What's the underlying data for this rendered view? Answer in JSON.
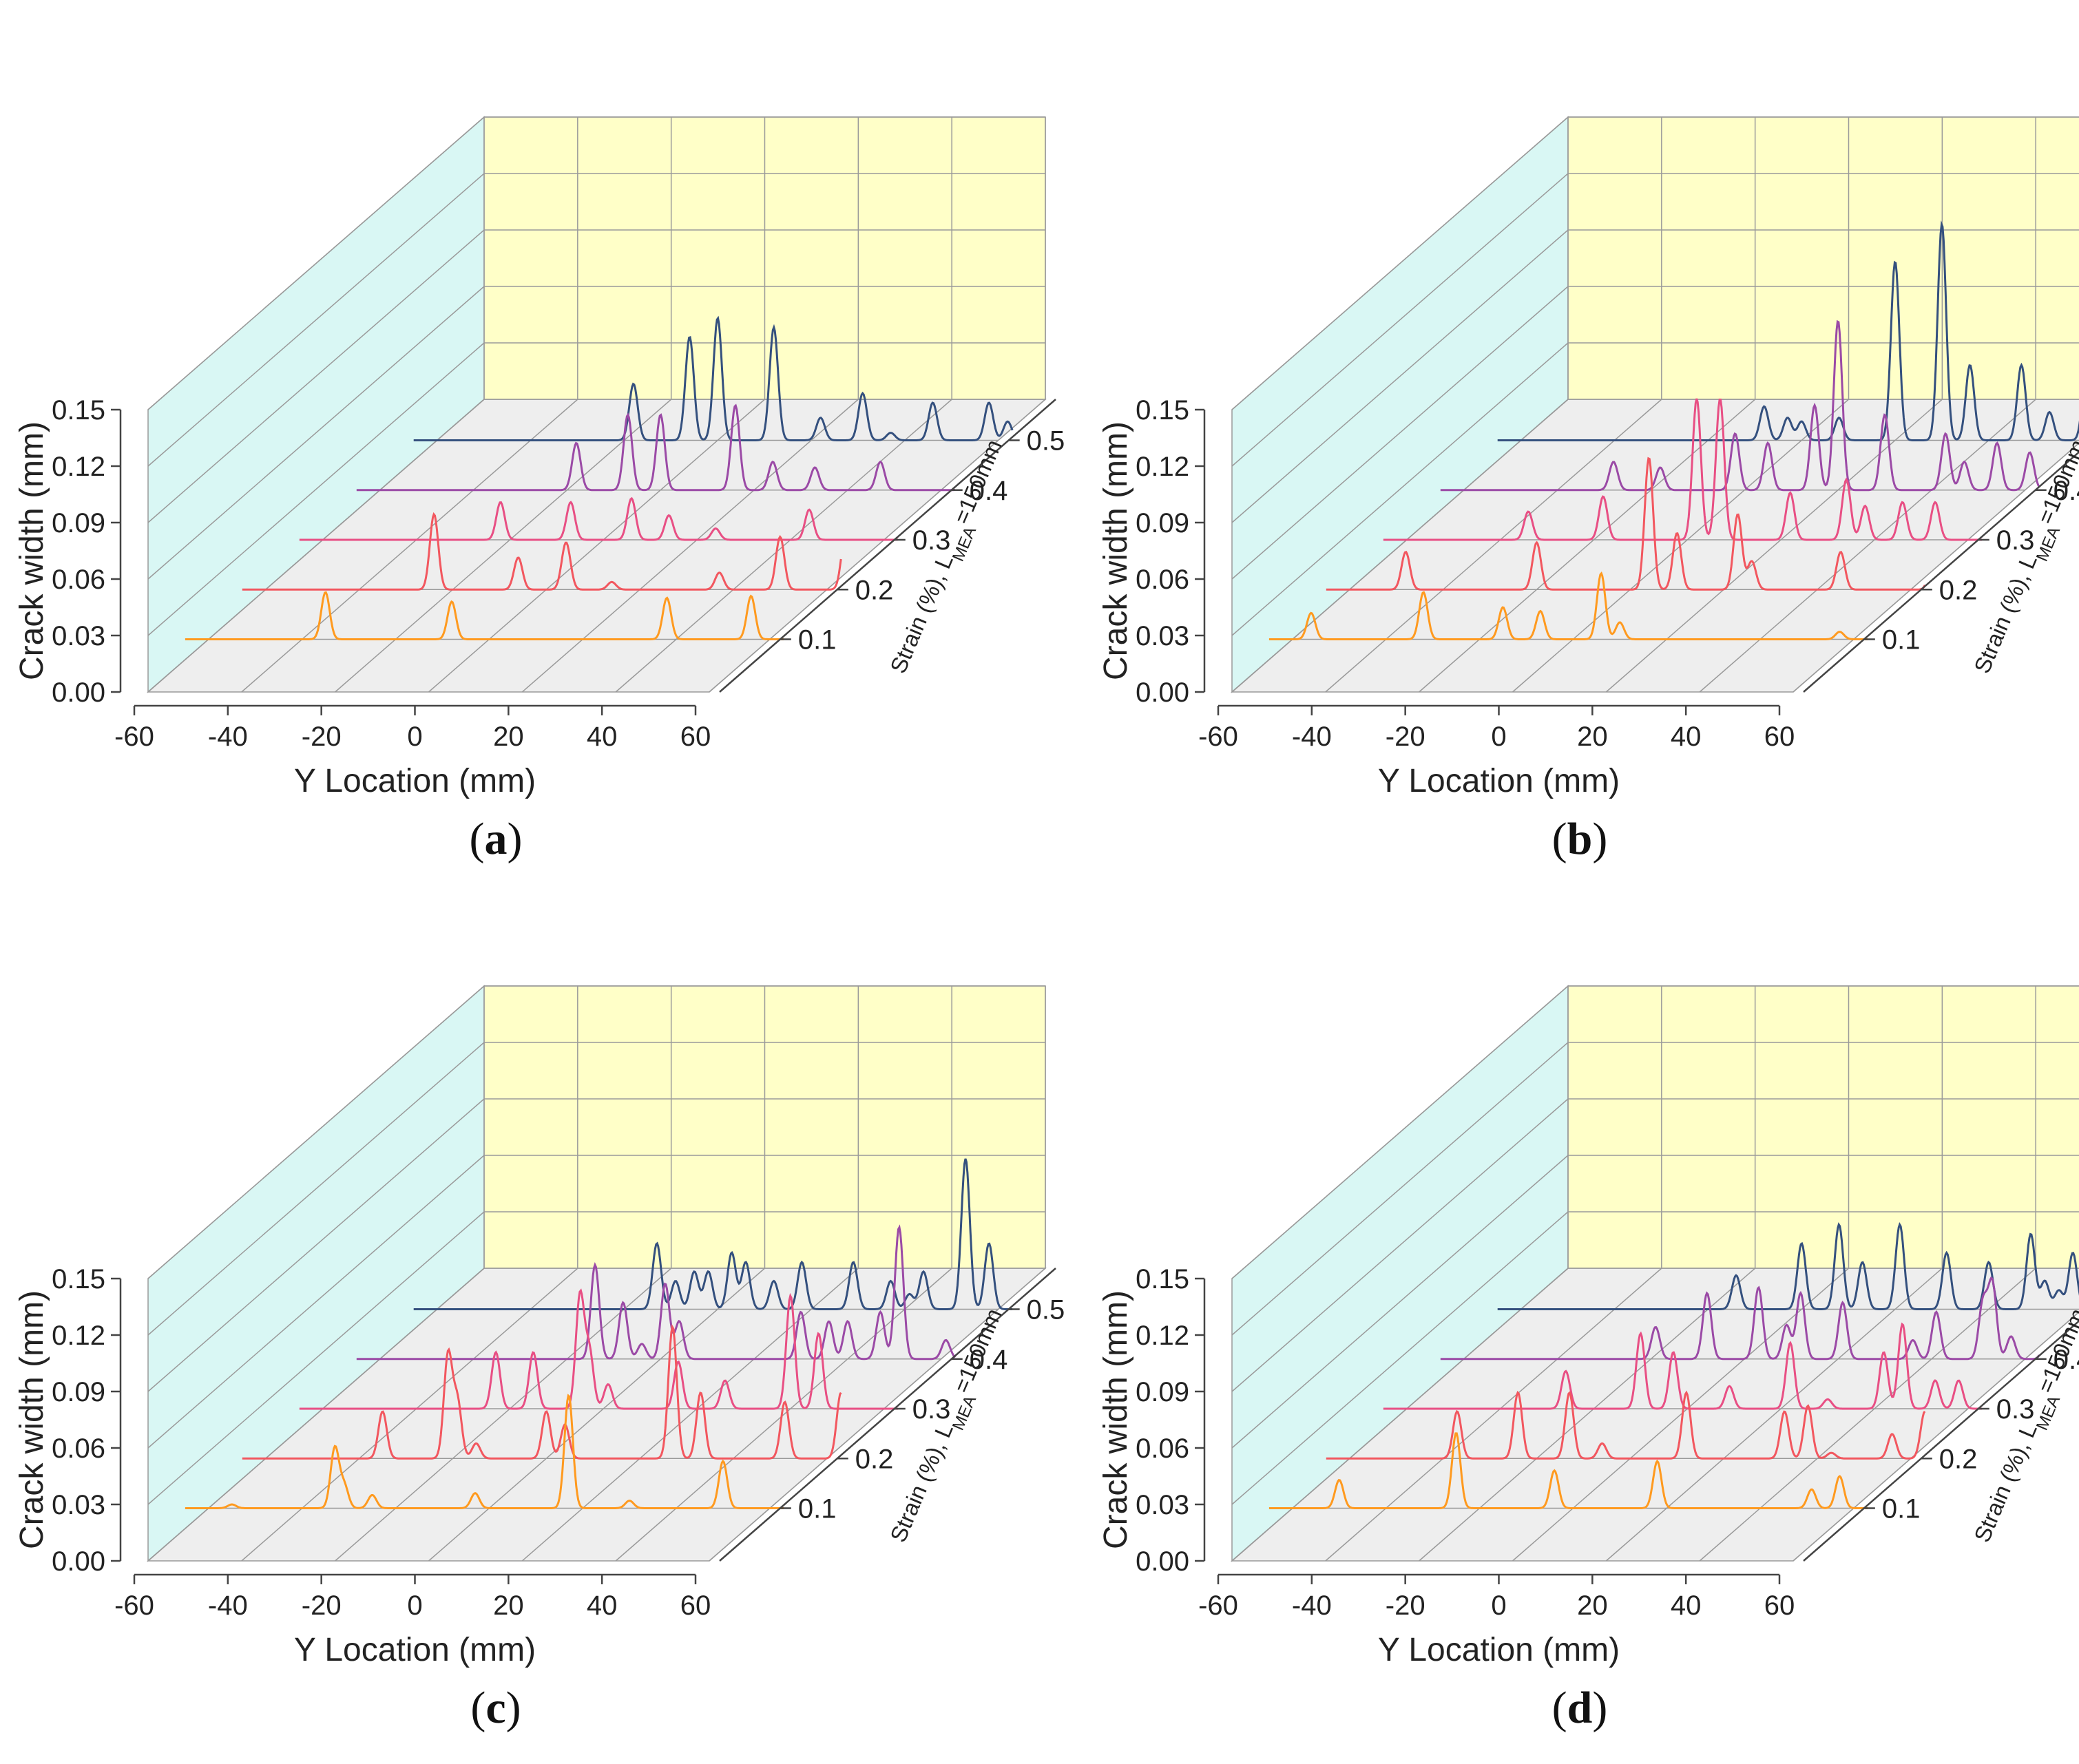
{
  "colors": {
    "back_wall": "#ffffc8",
    "side_wall": "#d9f7f4",
    "floor": "#eeeeee",
    "grid": "#9a9a9a",
    "axis": "#444444",
    "series": [
      "#ff9a1f",
      "#f2575f",
      "#e84f84",
      "#9b4aa6",
      "#34507e"
    ]
  },
  "chart_data": [
    {
      "type": "line",
      "panel": "(a)",
      "caption_letter": "a",
      "xlabel": "Y Location (mm)",
      "ylabel": "Crack width (mm)",
      "zlabel": "Strain (%), L",
      "zlabel_sub": "MEA",
      "zlabel_suffix": "=150mm",
      "xlim": [
        -60,
        60
      ],
      "ylim": [
        0,
        0.15
      ],
      "x_ticks": [
        "-60",
        "-40",
        "-20",
        "0",
        "20",
        "40",
        "60"
      ],
      "y_ticks": [
        "0.00",
        "0.03",
        "0.06",
        "0.09",
        "0.12",
        "0.15"
      ],
      "z_ticks": [
        "0.1",
        "0.2",
        "0.3",
        "0.4",
        "0.5"
      ],
      "series": [
        {
          "strain": 0.1,
          "peaks": [
            [
              -35,
              0.025
            ],
            [
              -8,
              0.02
            ],
            [
              38,
              0.022
            ],
            [
              56,
              0.023
            ]
          ]
        },
        {
          "strain": 0.2,
          "peaks": [
            [
              -24,
              0.04
            ],
            [
              -6,
              0.017
            ],
            [
              4,
              0.014
            ],
            [
              4.5,
              0.012
            ],
            [
              14,
              0.004
            ],
            [
              37,
              0.009
            ],
            [
              50,
              0.028
            ],
            [
              64,
              0.03
            ]
          ]
        },
        {
          "strain": 0.3,
          "peaks": [
            [
              -22,
              0.02
            ],
            [
              -7,
              0.02
            ],
            [
              6,
              0.022
            ],
            [
              14,
              0.013
            ],
            [
              24,
              0.006
            ],
            [
              44,
              0.016
            ],
            [
              66,
              0.026
            ]
          ]
        },
        {
          "strain": 0.4,
          "peaks": [
            [
              -18,
              0.025
            ],
            [
              -7,
              0.04
            ],
            [
              0,
              0.04
            ],
            [
              16,
              0.045
            ],
            [
              24,
              0.015
            ],
            [
              33,
              0.012
            ],
            [
              47,
              0.015
            ],
            [
              66,
              0.023
            ],
            [
              70,
              0.008
            ],
            [
              81,
              0.027
            ],
            [
              89,
              0.04
            ]
          ]
        },
        {
          "strain": 0.5,
          "peaks": [
            [
              -18,
              0.03
            ],
            [
              -6,
              0.055
            ],
            [
              0,
              0.065
            ],
            [
              12,
              0.06
            ],
            [
              22,
              0.012
            ],
            [
              31,
              0.025
            ],
            [
              37,
              0.004
            ],
            [
              46,
              0.02
            ],
            [
              58,
              0.02
            ],
            [
              62,
              0.01
            ],
            [
              77,
              0.025
            ],
            [
              89,
              0.04
            ]
          ]
        }
      ]
    },
    {
      "type": "line",
      "panel": "(b)",
      "caption_letter": "b",
      "xlabel": "Y Location (mm)",
      "ylabel": "Crack width (mm)",
      "zlabel": "Strain (%), L",
      "zlabel_sub": "MEA",
      "zlabel_suffix": "=150mm",
      "xlim": [
        -60,
        60
      ],
      "ylim": [
        0,
        0.15
      ],
      "x_ticks": [
        "-60",
        "-40",
        "-20",
        "0",
        "20",
        "40",
        "60"
      ],
      "y_ticks": [
        "0.00",
        "0.03",
        "0.06",
        "0.09",
        "0.12",
        "0.15"
      ],
      "z_ticks": [
        "0.1",
        "0.2",
        "0.3",
        "0.4",
        "0.5"
      ],
      "series": [
        {
          "strain": 0.1,
          "peaks": [
            [
              -56,
              0.014
            ],
            [
              -32,
              0.025
            ],
            [
              -15,
              0.017
            ],
            [
              -7,
              0.015
            ],
            [
              6,
              0.035
            ],
            [
              10,
              0.009
            ],
            [
              57,
              0.004
            ]
          ]
        },
        {
          "strain": 0.2,
          "peaks": [
            [
              -48,
              0.02
            ],
            [
              -20,
              0.025
            ],
            [
              4,
              0.07
            ],
            [
              10,
              0.03
            ],
            [
              23,
              0.04
            ],
            [
              26,
              0.015
            ],
            [
              45,
              0.02
            ],
            [
              65,
              0.028
            ]
          ]
        },
        {
          "strain": 0.3,
          "peaks": [
            [
              -34,
              0.015
            ],
            [
              -18,
              0.023
            ],
            [
              2,
              0.075
            ],
            [
              7,
              0.075
            ],
            [
              22,
              0.025
            ],
            [
              34,
              0.032
            ],
            [
              38,
              0.018
            ],
            [
              46,
              0.02
            ],
            [
              53,
              0.02
            ],
            [
              71,
              0.027
            ],
            [
              80,
              0.005
            ]
          ]
        },
        {
          "strain": 0.4,
          "peaks": [
            [
              -28,
              0.015
            ],
            [
              -18,
              0.012
            ],
            [
              -2,
              0.03
            ],
            [
              5,
              0.025
            ],
            [
              15,
              0.045
            ],
            [
              20,
              0.09
            ],
            [
              30,
              0.04
            ],
            [
              43,
              0.03
            ],
            [
              47,
              0.015
            ],
            [
              54,
              0.025
            ],
            [
              61,
              0.02
            ],
            [
              76,
              0.027
            ],
            [
              80,
              0.008
            ],
            [
              88,
              0.006
            ]
          ]
        },
        {
          "strain": 0.5,
          "peaks": [
            [
              -8,
              0.018
            ],
            [
              -3,
              0.012
            ],
            [
              0,
              0.01
            ],
            [
              8,
              0.012
            ],
            [
              20,
              0.095
            ],
            [
              30,
              0.115
            ],
            [
              36,
              0.04
            ],
            [
              47,
              0.04
            ],
            [
              53,
              0.015
            ],
            [
              61,
              0.04
            ],
            [
              69,
              0.025
            ],
            [
              80,
              0.025
            ],
            [
              96,
              0.035
            ],
            [
              100,
              0.01
            ],
            [
              106,
              0.008
            ]
          ]
        }
      ]
    },
    {
      "type": "line",
      "panel": "(c)",
      "caption_letter": "c",
      "xlabel": "Y Location (mm)",
      "ylabel": "Crack width (mm)",
      "zlabel": "Strain (%), L",
      "zlabel_sub": "MEA",
      "zlabel_suffix": "=150mm",
      "xlim": [
        -60,
        60
      ],
      "ylim": [
        0,
        0.15
      ],
      "x_ticks": [
        "-60",
        "-40",
        "-20",
        "0",
        "20",
        "40",
        "60"
      ],
      "y_ticks": [
        "0.00",
        "0.03",
        "0.06",
        "0.09",
        "0.12",
        "0.15"
      ],
      "z_ticks": [
        "0.1",
        "0.2",
        "0.3",
        "0.4",
        "0.5"
      ],
      "series": [
        {
          "strain": 0.1,
          "peaks": [
            [
              -55,
              0.002
            ],
            [
              -33,
              0.032
            ],
            [
              -31,
              0.012
            ],
            [
              -25,
              0.007
            ],
            [
              -3,
              0.008
            ],
            [
              17,
              0.06
            ],
            [
              30,
              0.004
            ],
            [
              50,
              0.025
            ]
          ]
        },
        {
          "strain": 0.2,
          "peaks": [
            [
              -35,
              0.025
            ],
            [
              -21,
              0.055
            ],
            [
              -19,
              0.03
            ],
            [
              -15,
              0.008
            ],
            [
              0,
              0.025
            ],
            [
              4,
              0.018
            ],
            [
              27,
              0.07
            ],
            [
              33,
              0.035
            ],
            [
              51,
              0.03
            ],
            [
              63,
              0.035
            ]
          ]
        },
        {
          "strain": 0.3,
          "peaks": [
            [
              -23,
              0.03
            ],
            [
              -15,
              0.03
            ],
            [
              -5,
              0.06
            ],
            [
              -3,
              0.03
            ],
            [
              1,
              0.013
            ],
            [
              16,
              0.025
            ],
            [
              26,
              0.015
            ],
            [
              40,
              0.06
            ],
            [
              46,
              0.04
            ],
            [
              68,
              0.03
            ],
            [
              81,
              0.04
            ]
          ]
        },
        {
          "strain": 0.4,
          "peaks": [
            [
              -14,
              0.05
            ],
            [
              -8,
              0.03
            ],
            [
              -4,
              0.008
            ],
            [
              1,
              0.04
            ],
            [
              4,
              0.02
            ],
            [
              30,
              0.025
            ],
            [
              36,
              0.02
            ],
            [
              40,
              0.02
            ],
            [
              47,
              0.025
            ],
            [
              51,
              0.07
            ],
            [
              61,
              0.01
            ],
            [
              74,
              0.023
            ],
            [
              88,
              0.038
            ]
          ]
        },
        {
          "strain": 0.5,
          "peaks": [
            [
              -13,
              0.035
            ],
            [
              -9,
              0.015
            ],
            [
              -5,
              0.02
            ],
            [
              -2,
              0.02
            ],
            [
              3,
              0.03
            ],
            [
              6,
              0.025
            ],
            [
              12,
              0.015
            ],
            [
              18,
              0.025
            ],
            [
              29,
              0.025
            ],
            [
              37,
              0.015
            ],
            [
              41,
              0.008
            ],
            [
              44,
              0.02
            ],
            [
              53,
              0.08
            ],
            [
              58,
              0.035
            ],
            [
              74,
              0.035
            ],
            [
              85,
              0.02
            ],
            [
              90,
              0.025
            ]
          ]
        }
      ]
    },
    {
      "type": "line",
      "panel": "(d)",
      "caption_letter": "d",
      "xlabel": "Y Location (mm)",
      "ylabel": "Crack width (mm)",
      "zlabel": "Strain (%), L",
      "zlabel_sub": "MEA",
      "zlabel_suffix": "=150mm",
      "xlim": [
        -60,
        60
      ],
      "ylim": [
        0,
        0.15
      ],
      "x_ticks": [
        "-60",
        "-40",
        "-20",
        "0",
        "20",
        "40",
        "60"
      ],
      "y_ticks": [
        "0.00",
        "0.03",
        "0.06",
        "0.09",
        "0.12",
        "0.15"
      ],
      "z_ticks": [
        "0.1",
        "0.2",
        "0.3",
        "0.4",
        "0.5"
      ],
      "series": [
        {
          "strain": 0.1,
          "peaks": [
            [
              -50,
              0.015
            ],
            [
              -25,
              0.04
            ],
            [
              -4,
              0.02
            ],
            [
              18,
              0.025
            ],
            [
              51,
              0.01
            ],
            [
              57,
              0.017
            ]
          ]
        },
        {
          "strain": 0.2,
          "peaks": [
            [
              -37,
              0.025
            ],
            [
              -24,
              0.035
            ],
            [
              -13,
              0.035
            ],
            [
              -6,
              0.008
            ],
            [
              12,
              0.035
            ],
            [
              33,
              0.025
            ],
            [
              38,
              0.028
            ],
            [
              43,
              0.003
            ],
            [
              56,
              0.013
            ],
            [
              63,
              0.025
            ]
          ]
        },
        {
          "strain": 0.3,
          "peaks": [
            [
              -26,
              0.02
            ],
            [
              -10,
              0.04
            ],
            [
              -3,
              0.03
            ],
            [
              9,
              0.012
            ],
            [
              22,
              0.035
            ],
            [
              30,
              0.005
            ],
            [
              42,
              0.03
            ],
            [
              46,
              0.045
            ],
            [
              53,
              0.015
            ],
            [
              58,
              0.015
            ],
            [
              70,
              0.014
            ],
            [
              78,
              0.015
            ],
            [
              84,
              0.022
            ]
          ]
        },
        {
          "strain": 0.4,
          "peaks": [
            [
              -19,
              0.017
            ],
            [
              -8,
              0.035
            ],
            [
              3,
              0.038
            ],
            [
              9,
              0.018
            ],
            [
              12,
              0.035
            ],
            [
              21,
              0.03
            ],
            [
              36,
              0.01
            ],
            [
              41,
              0.025
            ],
            [
              51,
              0.03
            ],
            [
              53,
              0.04
            ],
            [
              57,
              0.012
            ],
            [
              65,
              0.025
            ],
            [
              76,
              0.018
            ],
            [
              84,
              0.02
            ],
            [
              90,
              0.022
            ]
          ]
        },
        {
          "strain": 0.5,
          "peaks": [
            [
              -14,
              0.018
            ],
            [
              0,
              0.035
            ],
            [
              8,
              0.045
            ],
            [
              13,
              0.025
            ],
            [
              21,
              0.045
            ],
            [
              31,
              0.03
            ],
            [
              40,
              0.025
            ],
            [
              49,
              0.04
            ],
            [
              52,
              0.015
            ],
            [
              55,
              0.01
            ],
            [
              58,
              0.03
            ],
            [
              63,
              0.02
            ],
            [
              66,
              0.055
            ],
            [
              73,
              0.03
            ],
            [
              80,
              0.015
            ],
            [
              87,
              0.02
            ],
            [
              94,
              0.03
            ]
          ]
        }
      ]
    }
  ]
}
